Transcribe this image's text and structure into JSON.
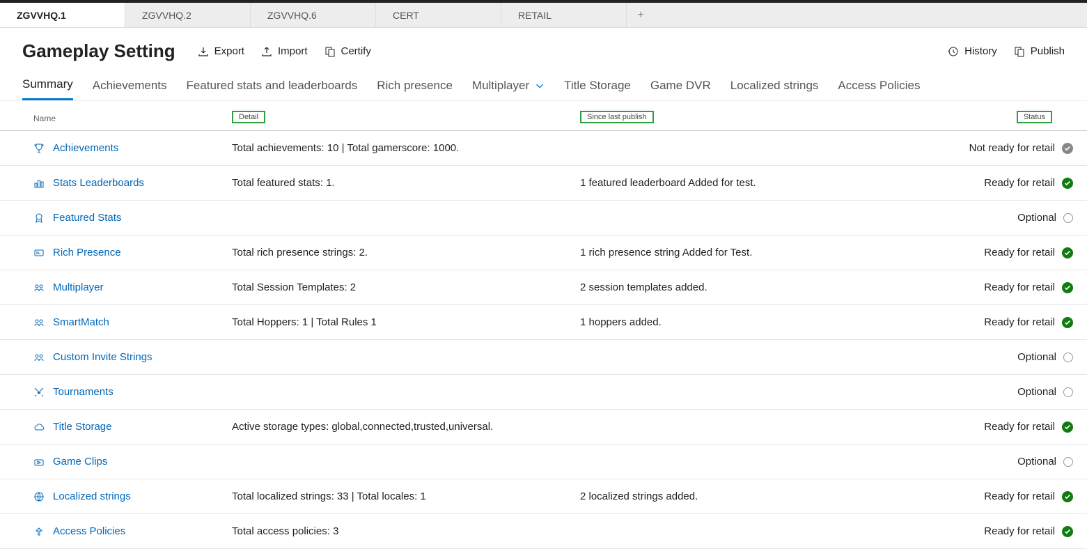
{
  "tabs": [
    {
      "label": "ZGVVHQ.1",
      "active": true
    },
    {
      "label": "ZGVVHQ.2",
      "active": false
    },
    {
      "label": "ZGVVHQ.6",
      "active": false
    },
    {
      "label": "CERT",
      "active": false
    },
    {
      "label": "RETAIL",
      "active": false
    }
  ],
  "page_title": "Gameplay Setting",
  "actions": {
    "export": "Export",
    "import": "Import",
    "certify": "Certify",
    "history": "History",
    "publish": "Publish"
  },
  "subnav": [
    {
      "label": "Summary",
      "active": true,
      "dropdown": false
    },
    {
      "label": "Achievements",
      "active": false,
      "dropdown": false
    },
    {
      "label": "Featured stats and leaderboards",
      "active": false,
      "dropdown": false
    },
    {
      "label": "Rich presence",
      "active": false,
      "dropdown": false
    },
    {
      "label": "Multiplayer",
      "active": false,
      "dropdown": true
    },
    {
      "label": "Title Storage",
      "active": false,
      "dropdown": false
    },
    {
      "label": "Game DVR",
      "active": false,
      "dropdown": false
    },
    {
      "label": "Localized strings",
      "active": false,
      "dropdown": false
    },
    {
      "label": "Access Policies",
      "active": false,
      "dropdown": false
    }
  ],
  "columns": {
    "name": "Name",
    "detail": "Detail",
    "since": "Since last publish",
    "status": "Status"
  },
  "status_labels": {
    "ready": "Ready for retail",
    "notready": "Not ready for retail",
    "optional": "Optional"
  },
  "rows": [
    {
      "icon": "trophy",
      "name": "Achievements",
      "detail": "Total achievements: 10 | Total gamerscore: 1000.",
      "since": "",
      "status": "notready"
    },
    {
      "icon": "leaderboard",
      "name": "Stats Leaderboards",
      "detail": "Total featured stats: 1.",
      "since": "1 featured leaderboard Added for test.",
      "status": "ready"
    },
    {
      "icon": "badge",
      "name": "Featured Stats",
      "detail": "",
      "since": "",
      "status": "optional"
    },
    {
      "icon": "card",
      "name": "Rich Presence",
      "detail": "Total rich presence strings: 2.",
      "since": "1 rich presence string Added for Test.",
      "status": "ready"
    },
    {
      "icon": "people",
      "name": "Multiplayer",
      "detail": "Total Session Templates: 2",
      "since": "2 session templates added.",
      "status": "ready"
    },
    {
      "icon": "people",
      "name": "SmartMatch",
      "detail": "Total Hoppers: 1 | Total Rules 1",
      "since": "1 hoppers added.",
      "status": "ready"
    },
    {
      "icon": "people",
      "name": "Custom Invite Strings",
      "detail": "",
      "since": "",
      "status": "optional"
    },
    {
      "icon": "swords",
      "name": "Tournaments",
      "detail": "",
      "since": "",
      "status": "optional"
    },
    {
      "icon": "cloud",
      "name": "Title Storage",
      "detail": "Active storage types: global,connected,trusted,universal.",
      "since": "",
      "status": "ready"
    },
    {
      "icon": "clip",
      "name": "Game Clips",
      "detail": "",
      "since": "",
      "status": "optional"
    },
    {
      "icon": "globe",
      "name": "Localized strings",
      "detail": "Total localized strings: 33 | Total locales: 1",
      "since": "2 localized strings added.",
      "status": "ready"
    },
    {
      "icon": "share",
      "name": "Access Policies",
      "detail": "Total access policies: 3",
      "since": "",
      "status": "ready"
    }
  ],
  "colors": {
    "accent": "#0078d4",
    "link": "#0067b8",
    "ready": "#107c10",
    "notready": "#888888",
    "highlight_border": "#2e9e3f"
  }
}
